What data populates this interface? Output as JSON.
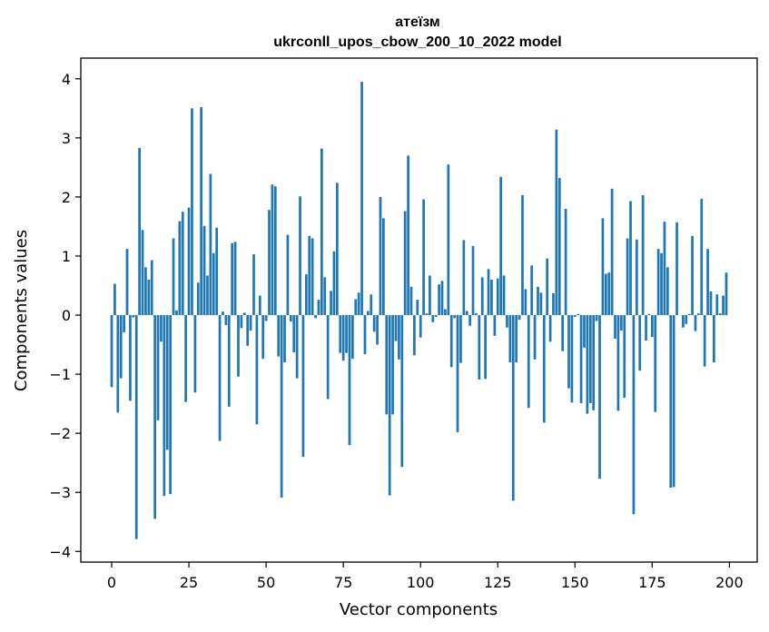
{
  "chart_data": {
    "type": "bar",
    "title_line1": "атеїзм",
    "title_line2": "ukrconll_upos_cbow_200_10_2022 model",
    "xlabel": "Vector components",
    "ylabel": "Components values",
    "xlim": [
      -10,
      209
    ],
    "ylim": [
      -4.18,
      4.35
    ],
    "xticks": [
      0,
      25,
      50,
      75,
      100,
      125,
      150,
      175,
      200
    ],
    "yticks": [
      -4,
      -3,
      -2,
      -1,
      0,
      1,
      2,
      3,
      4
    ],
    "xtick_labels": [
      "0",
      "25",
      "50",
      "75",
      "100",
      "125",
      "150",
      "175",
      "200"
    ],
    "ytick_labels": [
      "−4",
      "−3",
      "−2",
      "−1",
      "0",
      "1",
      "2",
      "3",
      "4"
    ],
    "grid": false,
    "bar_color": "#1f77b4",
    "x": [
      0,
      1,
      2,
      3,
      4,
      5,
      6,
      7,
      8,
      9,
      10,
      11,
      12,
      13,
      14,
      15,
      16,
      17,
      18,
      19,
      20,
      21,
      22,
      23,
      24,
      25,
      26,
      27,
      28,
      29,
      30,
      31,
      32,
      33,
      34,
      35,
      36,
      37,
      38,
      39,
      40,
      41,
      42,
      43,
      44,
      45,
      46,
      47,
      48,
      49,
      50,
      51,
      52,
      53,
      54,
      55,
      56,
      57,
      58,
      59,
      60,
      61,
      62,
      63,
      64,
      65,
      66,
      67,
      68,
      69,
      70,
      71,
      72,
      73,
      74,
      75,
      76,
      77,
      78,
      79,
      80,
      81,
      82,
      83,
      84,
      85,
      86,
      87,
      88,
      89,
      90,
      91,
      92,
      93,
      94,
      95,
      96,
      97,
      98,
      99,
      100,
      101,
      102,
      103,
      104,
      105,
      106,
      107,
      108,
      109,
      110,
      111,
      112,
      113,
      114,
      115,
      116,
      117,
      118,
      119,
      120,
      121,
      122,
      123,
      124,
      125,
      126,
      127,
      128,
      129,
      130,
      131,
      132,
      133,
      134,
      135,
      136,
      137,
      138,
      139,
      140,
      141,
      142,
      143,
      144,
      145,
      146,
      147,
      148,
      149,
      150,
      151,
      152,
      153,
      154,
      155,
      156,
      157,
      158,
      159,
      160,
      161,
      162,
      163,
      164,
      165,
      166,
      167,
      168,
      169,
      170,
      171,
      172,
      173,
      174,
      175,
      176,
      177,
      178,
      179,
      180,
      181,
      182,
      183,
      184,
      185,
      186,
      187,
      188,
      189,
      190,
      191,
      192,
      193,
      194,
      195,
      196,
      197,
      198,
      199
    ],
    "values": [
      -1.22,
      0.53,
      -1.65,
      -1.07,
      -0.29,
      1.12,
      -1.45,
      -0.04,
      -3.79,
      2.83,
      1.44,
      0.81,
      0.6,
      0.93,
      -3.45,
      -1.78,
      -0.45,
      -3.06,
      -2.28,
      -3.03,
      1.3,
      0.08,
      1.59,
      1.75,
      -1.47,
      1.82,
      3.5,
      -1.31,
      0.55,
      3.52,
      1.51,
      0.67,
      2.39,
      1.05,
      1.48,
      -2.13,
      0.06,
      -0.17,
      -1.55,
      1.22,
      1.24,
      -1.04,
      -0.22,
      0.04,
      -0.52,
      -0.26,
      1.03,
      -1.85,
      0.33,
      -0.74,
      -0.1,
      1.78,
      2.21,
      2.18,
      -0.7,
      -3.09,
      -0.8,
      1.36,
      -0.11,
      -0.63,
      -1.07,
      2.01,
      -2.4,
      0.69,
      1.34,
      1.3,
      -0.05,
      0.26,
      2.82,
      0.64,
      -1.42,
      0.41,
      1.08,
      2.24,
      -0.64,
      -0.77,
      -0.64,
      -2.2,
      -0.74,
      0.27,
      0.38,
      3.95,
      -0.66,
      0.07,
      0.35,
      -0.28,
      -0.5,
      2.0,
      1.64,
      -1.68,
      -3.05,
      -1.68,
      -0.44,
      -0.75,
      -2.57,
      1.76,
      2.7,
      0.48,
      -0.68,
      0.26,
      -0.38,
      1.96,
      0.03,
      0.67,
      -0.12,
      -0.03,
      0.52,
      0.58,
      0.1,
      2.55,
      -0.88,
      -0.05,
      -1.98,
      -0.81,
      1.27,
      0.07,
      -0.18,
      1.17,
      0.03,
      -1.09,
      0.64,
      -1.08,
      0.78,
      0.6,
      -0.35,
      0.62,
      2.34,
      0.67,
      -0.21,
      -0.8,
      -3.14,
      -0.8,
      -0.08,
      2.03,
      0.44,
      -1.57,
      0.84,
      -0.75,
      0.48,
      0.38,
      -1.82,
      0.96,
      -0.45,
      0.37,
      3.14,
      2.32,
      -0.61,
      1.8,
      -1.24,
      -1.48,
      -0.03,
      0.02,
      -1.49,
      -0.55,
      -1.67,
      -1.49,
      -1.61,
      -0.1,
      -2.77,
      1.64,
      0.7,
      0.72,
      2.14,
      -0.4,
      -1.62,
      -0.26,
      -1.4,
      1.3,
      1.93,
      -3.37,
      1.28,
      -0.94,
      2.03,
      -0.43,
      0.02,
      -0.37,
      -1.64,
      1.12,
      1.05,
      1.58,
      0.81,
      -2.92,
      -2.91,
      1.57,
      0.0,
      -0.21,
      -0.15,
      0.02,
      1.34,
      -0.27,
      0.03,
      1.97,
      -0.87,
      1.12,
      0.4,
      -0.8,
      0.35,
      0.03,
      0.33,
      0.72
    ]
  }
}
